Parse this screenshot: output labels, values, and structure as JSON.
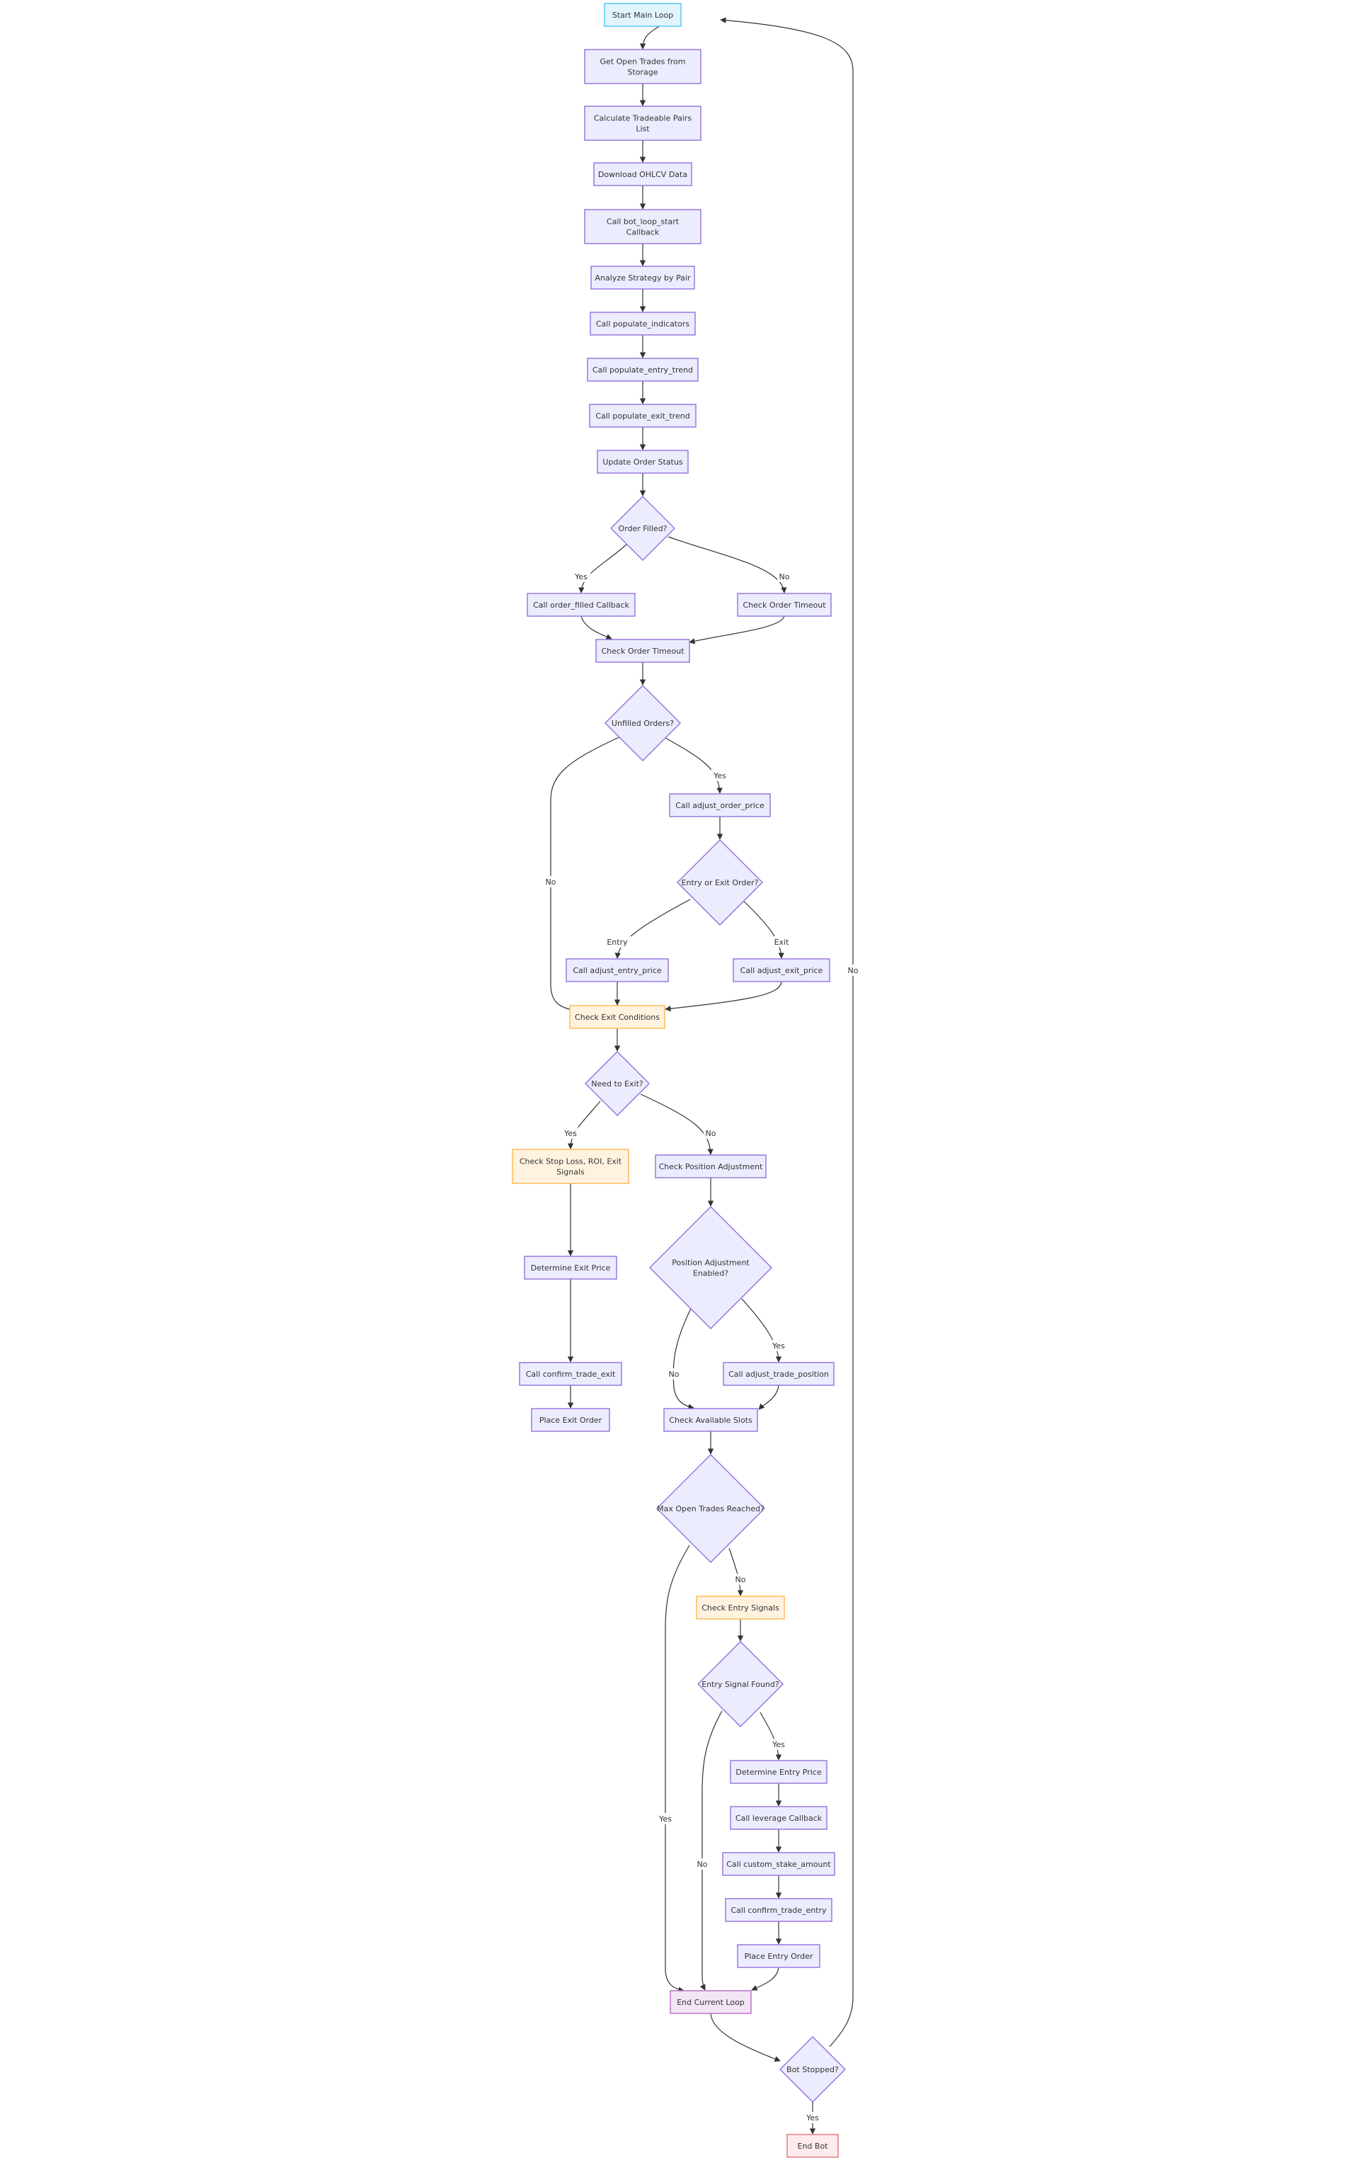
{
  "diagram": {
    "type": "flowchart",
    "styles": {
      "default": {
        "fill": "#ECECFF",
        "stroke": "#9370DB"
      },
      "start": {
        "fill": "#E1F5FE",
        "stroke": "#4FC3F7"
      },
      "check": {
        "fill": "#FFF3E0",
        "stroke": "#FFB74D"
      },
      "endloop": {
        "fill": "#F3E5F5",
        "stroke": "#BA68C8"
      },
      "stop": {
        "fill": "#FFEBEE",
        "stroke": "#E57373"
      },
      "text": "#333333",
      "edge": "#333333"
    },
    "nodes": [
      {
        "id": "start",
        "label": [
          "Start Main Loop"
        ],
        "shape": "rect",
        "style": "start"
      },
      {
        "id": "getTrades",
        "label": [
          "Get Open Trades from",
          "Storage"
        ],
        "shape": "rect"
      },
      {
        "id": "calcPairs",
        "label": [
          "Calculate Tradeable Pairs",
          "List"
        ],
        "shape": "rect"
      },
      {
        "id": "download",
        "label": [
          "Download OHLCV Data"
        ],
        "shape": "rect"
      },
      {
        "id": "botLoopStart",
        "label": [
          "Call bot_loop_start",
          "Callback"
        ],
        "shape": "rect"
      },
      {
        "id": "analyze",
        "label": [
          "Analyze Strategy by Pair"
        ],
        "shape": "rect"
      },
      {
        "id": "popInd",
        "label": [
          "Call populate_indicators"
        ],
        "shape": "rect"
      },
      {
        "id": "popEntry",
        "label": [
          "Call populate_entry_trend"
        ],
        "shape": "rect"
      },
      {
        "id": "popExit",
        "label": [
          "Call populate_exit_trend"
        ],
        "shape": "rect"
      },
      {
        "id": "updateOrder",
        "label": [
          "Update Order Status"
        ],
        "shape": "rect"
      },
      {
        "id": "orderFilled",
        "label": [
          "Order Filled?"
        ],
        "shape": "diamond"
      },
      {
        "id": "orderFilledCb",
        "label": [
          "Call order_filled Callback"
        ],
        "shape": "rect"
      },
      {
        "id": "checkTimeoutA",
        "label": [
          "Check Order Timeout"
        ],
        "shape": "rect"
      },
      {
        "id": "checkTimeoutB",
        "label": [
          "Check Order Timeout"
        ],
        "shape": "rect"
      },
      {
        "id": "unfilled",
        "label": [
          "Unfilled Orders?"
        ],
        "shape": "diamond"
      },
      {
        "id": "adjOrderPrice",
        "label": [
          "Call adjust_order_price"
        ],
        "shape": "rect"
      },
      {
        "id": "entryOrExit",
        "label": [
          "Entry or Exit Order?"
        ],
        "shape": "diamond"
      },
      {
        "id": "adjEntryPrice",
        "label": [
          "Call adjust_entry_price"
        ],
        "shape": "rect"
      },
      {
        "id": "adjExitPrice",
        "label": [
          "Call adjust_exit_price"
        ],
        "shape": "rect"
      },
      {
        "id": "checkExitCond",
        "label": [
          "Check Exit Conditions"
        ],
        "shape": "rect",
        "style": "check"
      },
      {
        "id": "needExit",
        "label": [
          "Need to Exit?"
        ],
        "shape": "diamond"
      },
      {
        "id": "checkStopLoss",
        "label": [
          "Check Stop Loss, ROI, Exit",
          "Signals"
        ],
        "shape": "rect",
        "style": "check"
      },
      {
        "id": "checkPosAdj",
        "label": [
          "Check Position Adjustment"
        ],
        "shape": "rect"
      },
      {
        "id": "determineExit",
        "label": [
          "Determine Exit Price"
        ],
        "shape": "rect"
      },
      {
        "id": "posAdjEnabled",
        "label": [
          "Position Adjustment",
          "Enabled?"
        ],
        "shape": "diamond"
      },
      {
        "id": "confirmExit",
        "label": [
          "Call confirm_trade_exit"
        ],
        "shape": "rect"
      },
      {
        "id": "adjTradePos",
        "label": [
          "Call adjust_trade_position"
        ],
        "shape": "rect"
      },
      {
        "id": "placeExit",
        "label": [
          "Place Exit Order"
        ],
        "shape": "rect"
      },
      {
        "id": "checkSlots",
        "label": [
          "Check Available Slots"
        ],
        "shape": "rect"
      },
      {
        "id": "maxOpen",
        "label": [
          "Max Open Trades Reached?"
        ],
        "shape": "diamond"
      },
      {
        "id": "checkEntrySig",
        "label": [
          "Check Entry Signals"
        ],
        "shape": "rect",
        "style": "check"
      },
      {
        "id": "entryFound",
        "label": [
          "Entry Signal Found?"
        ],
        "shape": "diamond"
      },
      {
        "id": "determineEntry",
        "label": [
          "Determine Entry Price"
        ],
        "shape": "rect"
      },
      {
        "id": "leverageCb",
        "label": [
          "Call leverage Callback"
        ],
        "shape": "rect"
      },
      {
        "id": "customStake",
        "label": [
          "Call custom_stake_amount"
        ],
        "shape": "rect"
      },
      {
        "id": "confirmEntry",
        "label": [
          "Call confirm_trade_entry"
        ],
        "shape": "rect"
      },
      {
        "id": "placeEntry",
        "label": [
          "Place Entry Order"
        ],
        "shape": "rect"
      },
      {
        "id": "endLoop",
        "label": [
          "End Current Loop"
        ],
        "shape": "rect",
        "style": "endloop"
      },
      {
        "id": "botStopped",
        "label": [
          "Bot Stopped?"
        ],
        "shape": "diamond"
      },
      {
        "id": "endBot",
        "label": [
          "End Bot"
        ],
        "shape": "rect",
        "style": "stop"
      }
    ],
    "edges": [
      {
        "from": "start",
        "to": "getTrades",
        "label": ""
      },
      {
        "from": "getTrades",
        "to": "calcPairs",
        "label": ""
      },
      {
        "from": "calcPairs",
        "to": "download",
        "label": ""
      },
      {
        "from": "download",
        "to": "botLoopStart",
        "label": ""
      },
      {
        "from": "botLoopStart",
        "to": "analyze",
        "label": ""
      },
      {
        "from": "analyze",
        "to": "popInd",
        "label": ""
      },
      {
        "from": "popInd",
        "to": "popEntry",
        "label": ""
      },
      {
        "from": "popEntry",
        "to": "popExit",
        "label": ""
      },
      {
        "from": "popExit",
        "to": "updateOrder",
        "label": ""
      },
      {
        "from": "updateOrder",
        "to": "orderFilled",
        "label": ""
      },
      {
        "from": "orderFilled",
        "to": "orderFilledCb",
        "label": "Yes"
      },
      {
        "from": "orderFilled",
        "to": "checkTimeoutA",
        "label": "No"
      },
      {
        "from": "orderFilledCb",
        "to": "checkTimeoutB",
        "label": ""
      },
      {
        "from": "checkTimeoutA",
        "to": "checkTimeoutB",
        "label": ""
      },
      {
        "from": "checkTimeoutB",
        "to": "unfilled",
        "label": ""
      },
      {
        "from": "unfilled",
        "to": "adjOrderPrice",
        "label": "Yes"
      },
      {
        "from": "unfilled",
        "to": "checkExitCond",
        "label": "No"
      },
      {
        "from": "adjOrderPrice",
        "to": "entryOrExit",
        "label": ""
      },
      {
        "from": "entryOrExit",
        "to": "adjEntryPrice",
        "label": "Entry"
      },
      {
        "from": "entryOrExit",
        "to": "adjExitPrice",
        "label": "Exit"
      },
      {
        "from": "adjEntryPrice",
        "to": "checkExitCond",
        "label": ""
      },
      {
        "from": "adjExitPrice",
        "to": "checkExitCond",
        "label": ""
      },
      {
        "from": "checkExitCond",
        "to": "needExit",
        "label": ""
      },
      {
        "from": "needExit",
        "to": "checkStopLoss",
        "label": "Yes"
      },
      {
        "from": "needExit",
        "to": "checkPosAdj",
        "label": "No"
      },
      {
        "from": "checkStopLoss",
        "to": "determineExit",
        "label": ""
      },
      {
        "from": "determineExit",
        "to": "confirmExit",
        "label": ""
      },
      {
        "from": "confirmExit",
        "to": "placeExit",
        "label": ""
      },
      {
        "from": "checkPosAdj",
        "to": "posAdjEnabled",
        "label": ""
      },
      {
        "from": "posAdjEnabled",
        "to": "adjTradePos",
        "label": "Yes"
      },
      {
        "from": "posAdjEnabled",
        "to": "checkSlots",
        "label": "No"
      },
      {
        "from": "adjTradePos",
        "to": "checkSlots",
        "label": ""
      },
      {
        "from": "checkSlots",
        "to": "maxOpen",
        "label": ""
      },
      {
        "from": "maxOpen",
        "to": "checkEntrySig",
        "label": "No"
      },
      {
        "from": "maxOpen",
        "to": "endLoop",
        "label": "Yes"
      },
      {
        "from": "checkEntrySig",
        "to": "entryFound",
        "label": ""
      },
      {
        "from": "entryFound",
        "to": "determineEntry",
        "label": "Yes"
      },
      {
        "from": "entryFound",
        "to": "endLoop",
        "label": "No"
      },
      {
        "from": "determineEntry",
        "to": "leverageCb",
        "label": ""
      },
      {
        "from": "leverageCb",
        "to": "customStake",
        "label": ""
      },
      {
        "from": "customStake",
        "to": "confirmEntry",
        "label": ""
      },
      {
        "from": "confirmEntry",
        "to": "placeEntry",
        "label": ""
      },
      {
        "from": "placeEntry",
        "to": "endLoop",
        "label": ""
      },
      {
        "from": "endLoop",
        "to": "botStopped",
        "label": ""
      },
      {
        "from": "botStopped",
        "to": "endBot",
        "label": "Yes"
      },
      {
        "from": "botStopped",
        "to": "start",
        "label": "No"
      }
    ]
  }
}
